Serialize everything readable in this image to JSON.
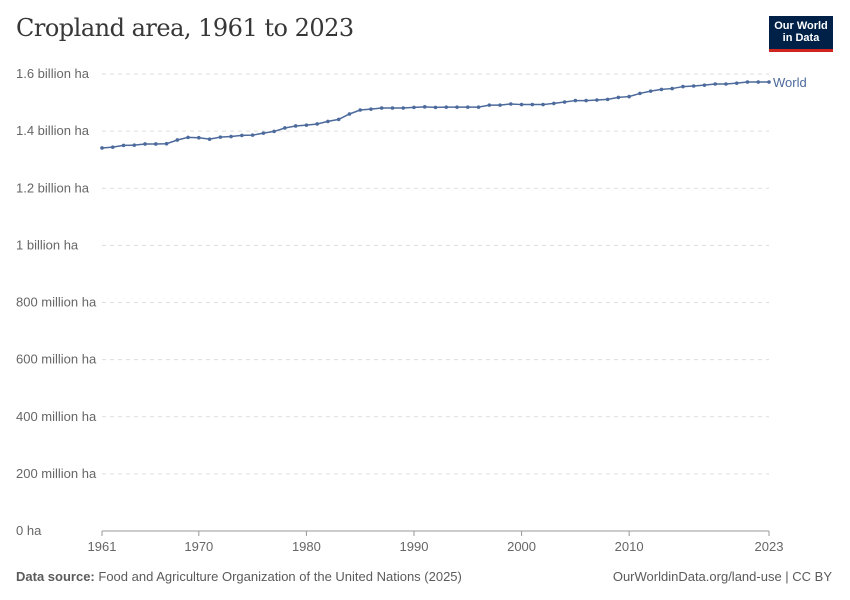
{
  "title": "Cropland area, 1961 to 2023",
  "logo": {
    "line1": "Our World",
    "line2": "in Data"
  },
  "footer": {
    "source_label": "Data source:",
    "source": "Food and Agriculture Organization of the United Nations (2025)",
    "right": "OurWorldinData.org/land-use | CC BY"
  },
  "chart_data": {
    "type": "line",
    "title": "Cropland area, 1961 to 2023",
    "ylim": [
      0,
      1.6
    ],
    "xlim": [
      1961,
      2023
    ],
    "grid": "horizontal dashed",
    "y_ticks": [
      {
        "v": 0,
        "label": "0 ha"
      },
      {
        "v": 0.2,
        "label": "200 million ha"
      },
      {
        "v": 0.4,
        "label": "400 million ha"
      },
      {
        "v": 0.6,
        "label": "600 million ha"
      },
      {
        "v": 0.8,
        "label": "800 million ha"
      },
      {
        "v": 1.0,
        "label": "1 billion ha"
      },
      {
        "v": 1.2,
        "label": "1.2 billion ha"
      },
      {
        "v": 1.4,
        "label": "1.4 billion ha"
      },
      {
        "v": 1.6,
        "label": "1.6 billion ha"
      }
    ],
    "x_ticks": [
      1961,
      1970,
      1980,
      1990,
      2000,
      2010,
      2023
    ],
    "series": [
      {
        "name": "World",
        "color": "#4c6a9c",
        "unit": "billion ha",
        "x": [
          1961,
          1962,
          1963,
          1964,
          1965,
          1966,
          1967,
          1968,
          1969,
          1970,
          1971,
          1972,
          1973,
          1974,
          1975,
          1976,
          1977,
          1978,
          1979,
          1980,
          1981,
          1982,
          1983,
          1984,
          1985,
          1986,
          1987,
          1988,
          1989,
          1990,
          1991,
          1992,
          1993,
          1994,
          1995,
          1996,
          1997,
          1998,
          1999,
          2000,
          2001,
          2002,
          2003,
          2004,
          2005,
          2006,
          2007,
          2008,
          2009,
          2010,
          2011,
          2012,
          2013,
          2014,
          2015,
          2016,
          2017,
          2018,
          2019,
          2020,
          2021,
          2022,
          2023
        ],
        "values": [
          1.341,
          1.344,
          1.35,
          1.351,
          1.355,
          1.355,
          1.356,
          1.369,
          1.378,
          1.377,
          1.372,
          1.379,
          1.381,
          1.385,
          1.386,
          1.393,
          1.399,
          1.411,
          1.418,
          1.421,
          1.425,
          1.434,
          1.441,
          1.46,
          1.474,
          1.477,
          1.481,
          1.481,
          1.481,
          1.483,
          1.485,
          1.483,
          1.484,
          1.484,
          1.484,
          1.484,
          1.491,
          1.491,
          1.495,
          1.493,
          1.493,
          1.493,
          1.497,
          1.502,
          1.507,
          1.507,
          1.509,
          1.511,
          1.518,
          1.521,
          1.532,
          1.54,
          1.546,
          1.549,
          1.556,
          1.558,
          1.561,
          1.565,
          1.565,
          1.568,
          1.572,
          1.572,
          1.572
        ]
      }
    ]
  }
}
